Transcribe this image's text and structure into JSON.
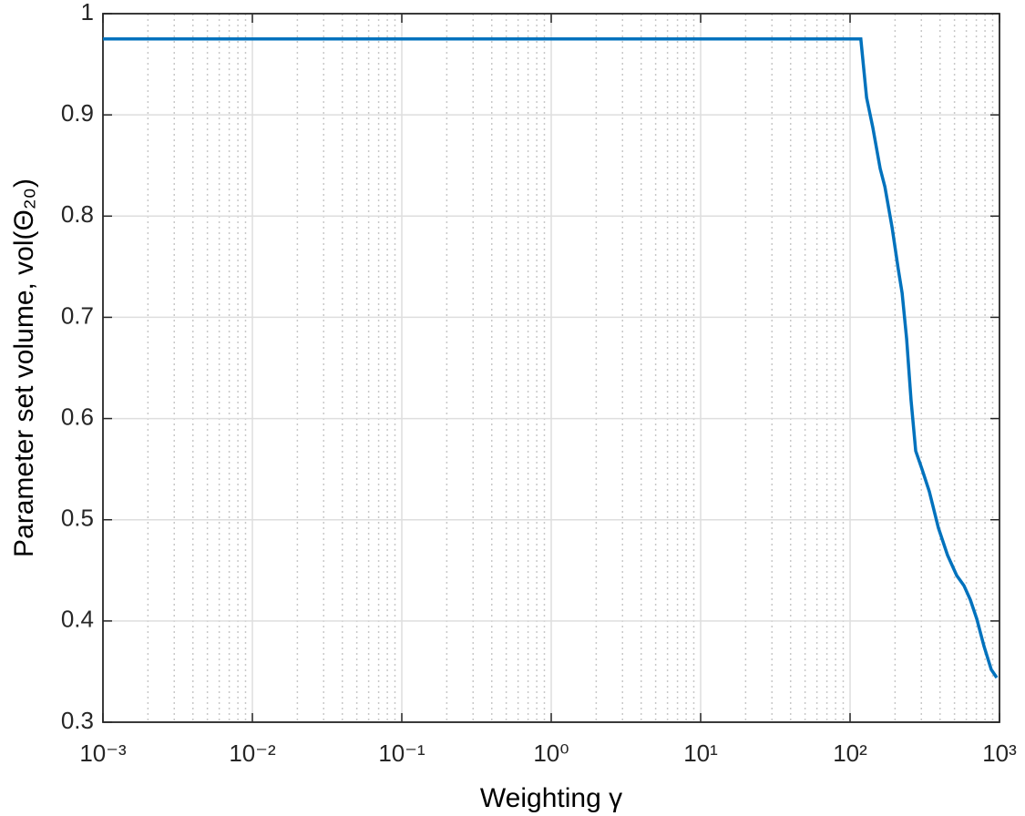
{
  "chart_data": {
    "type": "line",
    "xlabel": "Weighting γ",
    "ylabel": "Parameter set volume, vol(Θ₂₀)",
    "xscale": "log",
    "grid": true,
    "minor_grid": true,
    "xlim": [
      0.001,
      1000
    ],
    "xticks": [
      {
        "value": 0.001,
        "label": "10⁻³"
      },
      {
        "value": 0.01,
        "label": "10⁻²"
      },
      {
        "value": 0.1,
        "label": "10⁻¹"
      },
      {
        "value": 1,
        "label": "10⁰"
      },
      {
        "value": 10,
        "label": "10¹"
      },
      {
        "value": 100,
        "label": "10²"
      },
      {
        "value": 1000,
        "label": "10³"
      }
    ],
    "ylim": [
      0.3,
      1
    ],
    "yticks": [
      0.3,
      0.4,
      0.5,
      0.6,
      0.7,
      0.8,
      0.9,
      1
    ],
    "series": [
      {
        "color": "#0072bd",
        "x": [
          0.001,
          118,
          129,
          142,
          159,
          171,
          191,
          210,
          223,
          239,
          256,
          275,
          303,
          339,
          390,
          449,
          517,
          578,
          638,
          705,
          788,
          881,
          959
        ],
        "values": [
          0.975,
          0.975,
          0.917,
          0.8875,
          0.847,
          0.829,
          0.789,
          0.748,
          0.724,
          0.679,
          0.618,
          0.568,
          0.55,
          0.528,
          0.492,
          0.465,
          0.445,
          0.435,
          0.421,
          0.402,
          0.375,
          0.352,
          0.344
        ]
      }
    ]
  }
}
